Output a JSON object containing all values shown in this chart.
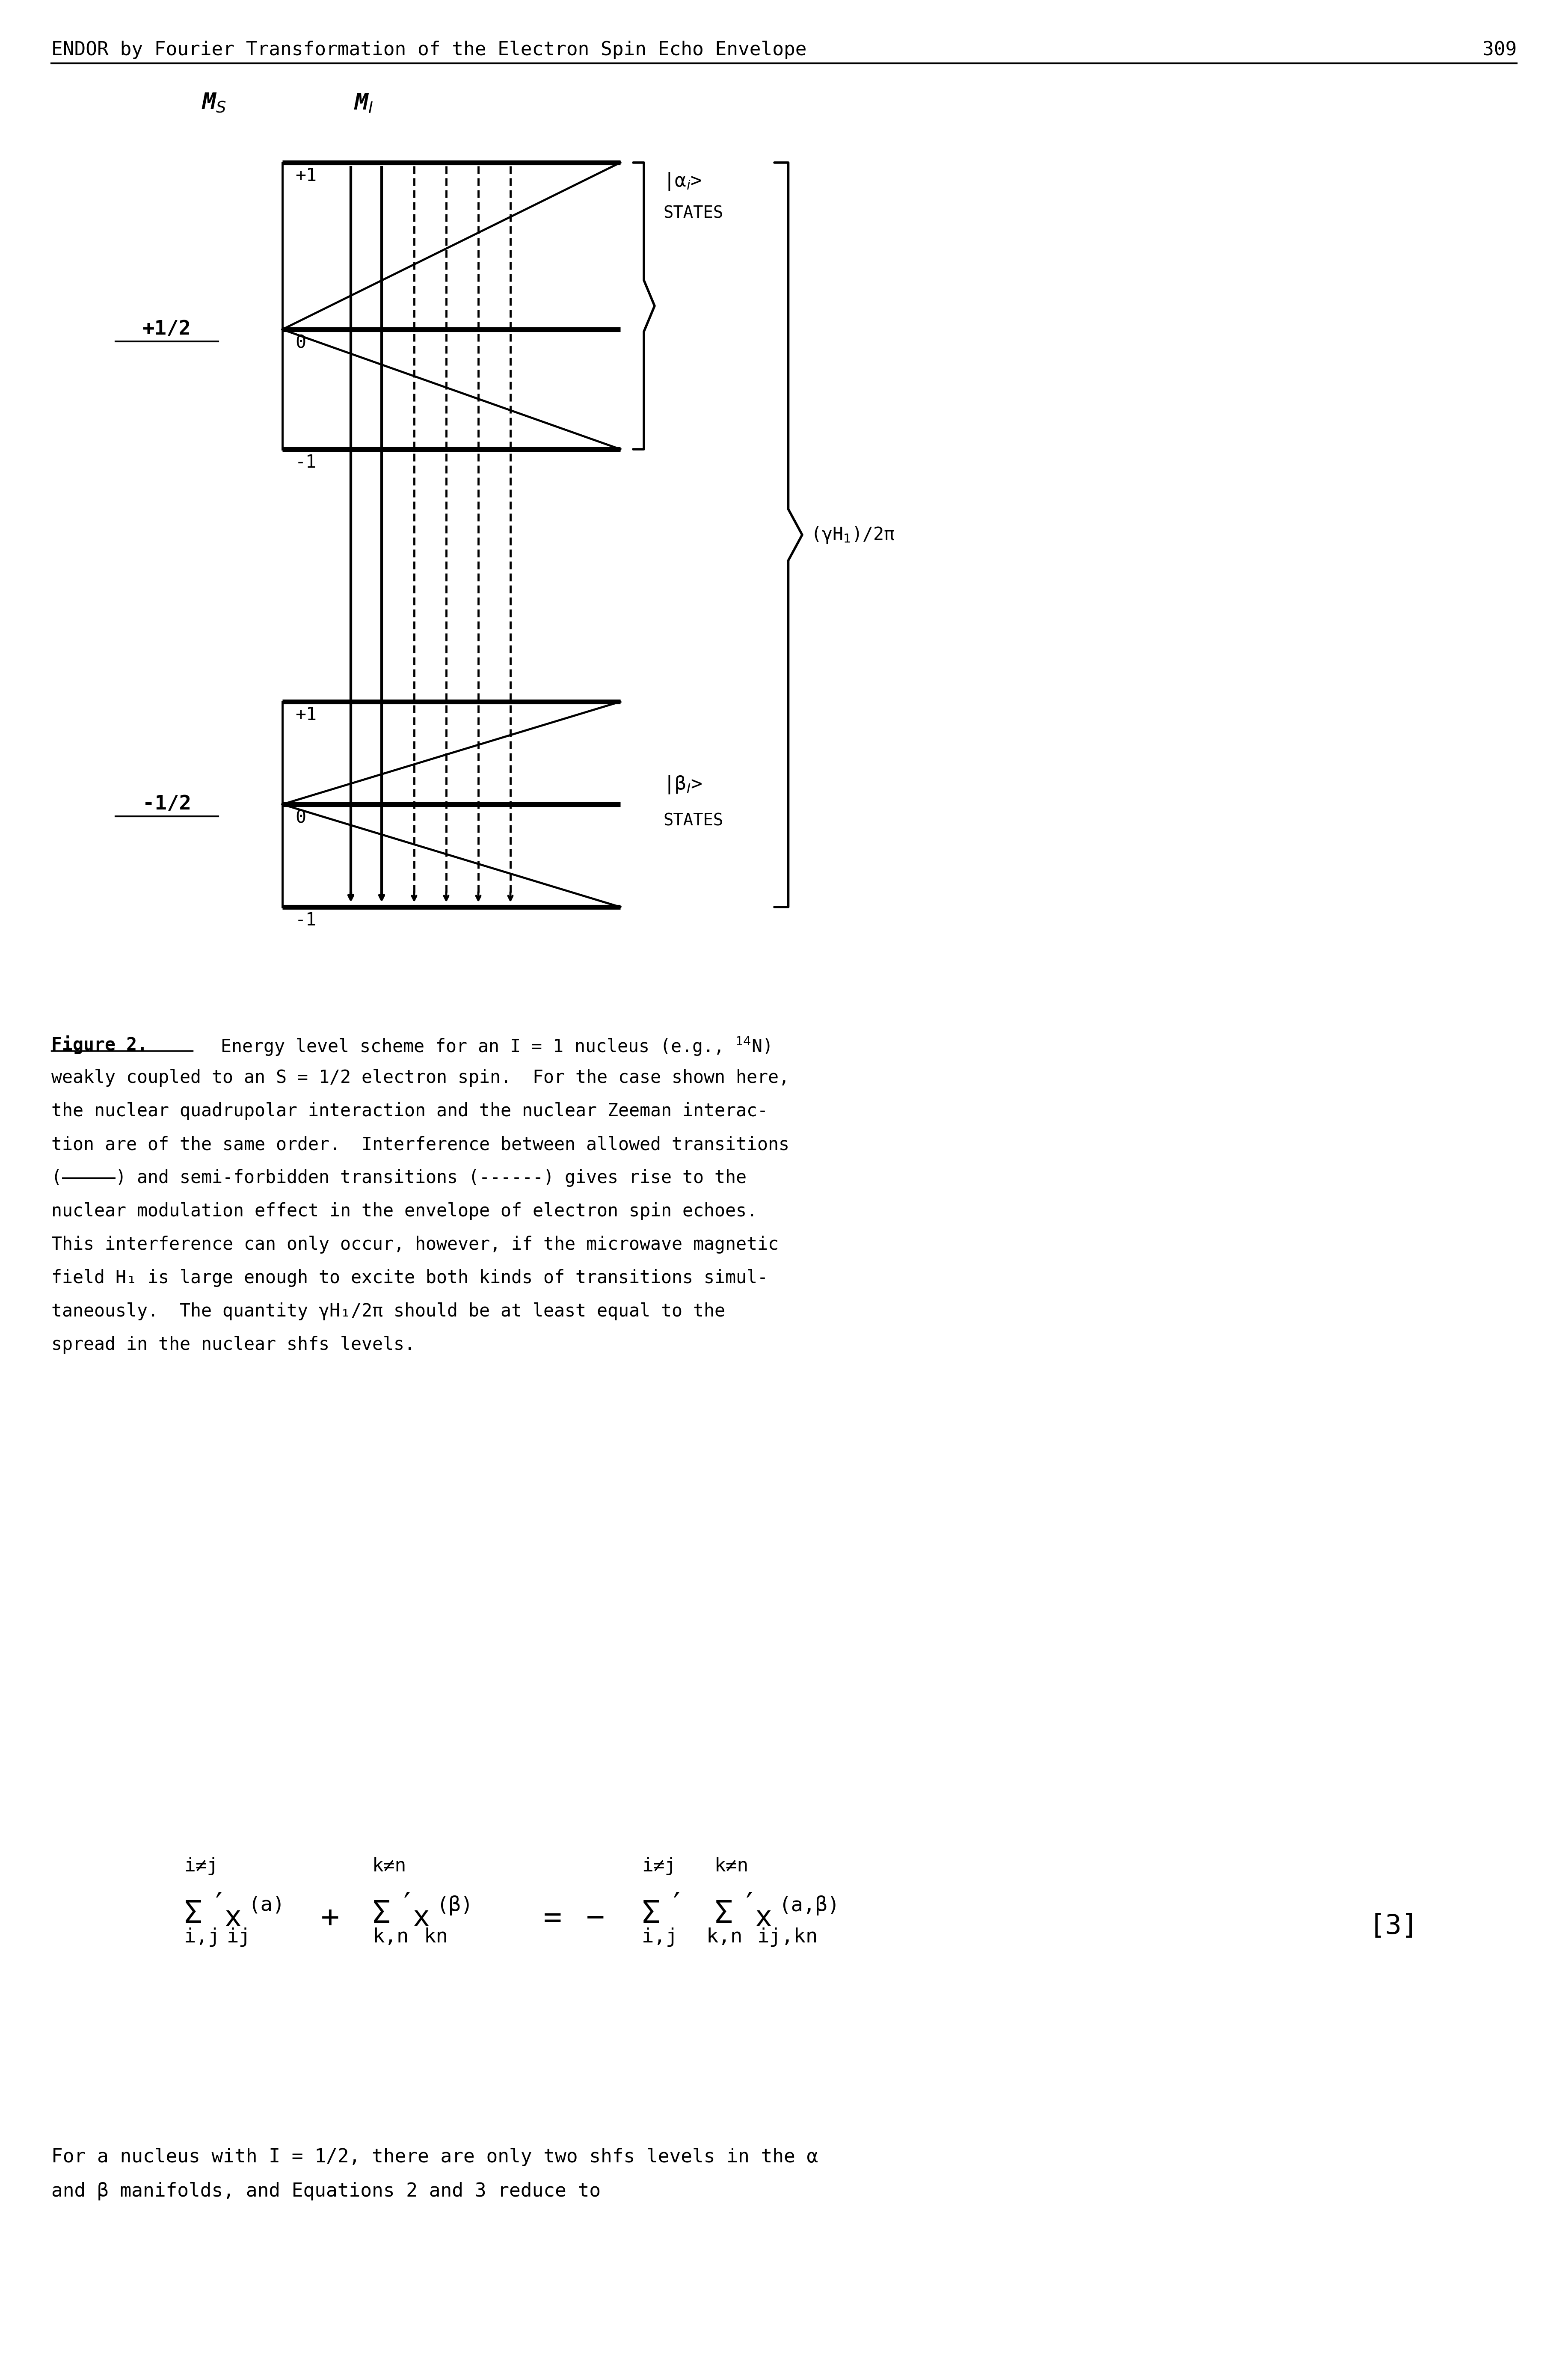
{
  "header": "ENDOR by Fourier Transformation of the Electron Spin Echo Envelope",
  "page_number": "309",
  "caption_line1": "Figure 2.  Energy level scheme for an I = 1 nucleus (e.g., ",
  "caption_14N": "14N)",
  "caption_rest": "weakly coupled to an S = 1/2 electron spin.  For the case shown here,\nthe nuclear quadrupolar interaction and the nuclear Zeeman interac-\ntion are of the same order.  Interference between allowed transitions\n(—————) and semi-forbidden transitions (------) gives rise to the\nnuclear modulation effect in the envelope of electron spin echoes.\nThis interference can only occur, however, if the microwave magnetic\nfield H₁ is large enough to excite both kinds of transitions simul-\ntaneously.  The quantity γH₁/2π should be at least equal to the\nspread in the nuclear shfs levels.",
  "last_text_line1": "For a nucleus with I = 1/2, there are only two shfs levels in the α",
  "last_text_line2": "and β manifolds, and Equations 2 and 3 reduce to"
}
